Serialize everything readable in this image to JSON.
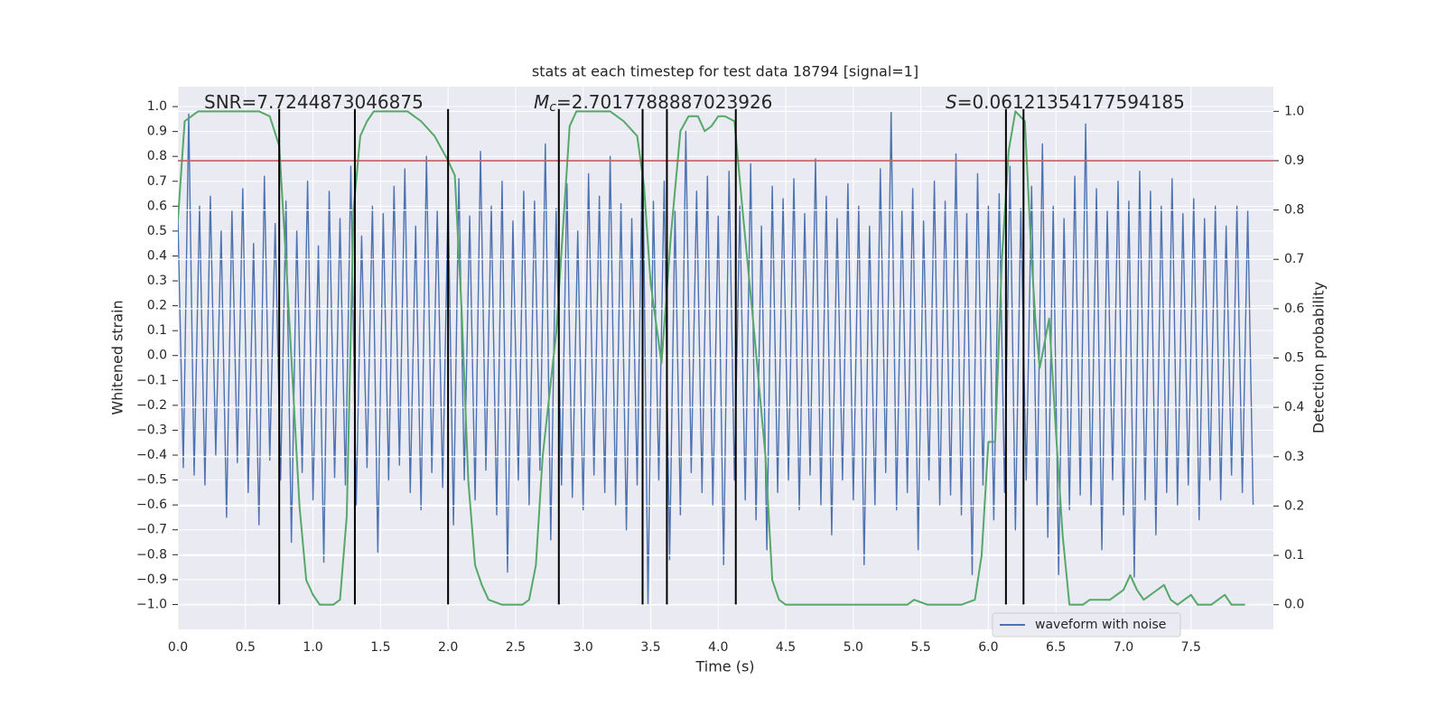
{
  "chart_data": {
    "type": "line",
    "title": "stats at each timestep for test data 18794 [signal=1]",
    "xlabel": "Time (s)",
    "ylabel": "Whitened strain",
    "y2label": "Detection probability",
    "xlim": [
      0,
      8.11
    ],
    "ylim": [
      -1.1,
      1.08
    ],
    "y2lim": [
      -0.05,
      1.05
    ],
    "xticks": [
      {
        "value": 0,
        "label": "0.0"
      },
      0.5,
      {
        "value": 1,
        "label": "1.0"
      },
      1.5,
      {
        "value": 2,
        "label": "2.0"
      },
      2.5,
      {
        "value": 3,
        "label": "3.0"
      },
      3.5,
      {
        "value": 4,
        "label": "4.0"
      },
      4.5,
      {
        "value": 5,
        "label": "5.0"
      },
      5.5,
      {
        "value": 6,
        "label": "6.0"
      },
      6.5,
      {
        "value": 7,
        "label": "7.0"
      },
      7.5
    ],
    "yticks": [
      {
        "value": 1,
        "label": "1.0"
      },
      0.9,
      0.8,
      0.7,
      0.6,
      0.5,
      0.4,
      0.3,
      0.2,
      0.1,
      {
        "value": 0,
        "label": "0.0"
      },
      {
        "value": -0.1,
        "label": "−0.1"
      },
      {
        "value": -0.2,
        "label": "−0.2"
      },
      {
        "value": -0.3,
        "label": "−0.3"
      },
      {
        "value": -0.4,
        "label": "−0.4"
      },
      {
        "value": -0.5,
        "label": "−0.5"
      },
      {
        "value": -0.6,
        "label": "−0.6"
      },
      {
        "value": -0.7,
        "label": "−0.7"
      },
      {
        "value": -0.8,
        "label": "−0.8"
      },
      {
        "value": -0.9,
        "label": "−0.9"
      },
      {
        "value": -1,
        "label": "−1.0"
      }
    ],
    "y2ticks": [
      {
        "value": 1,
        "label": "1.0"
      },
      0.9,
      0.8,
      0.7,
      0.6,
      0.5,
      0.4,
      0.3,
      0.2,
      0.1,
      {
        "value": 0,
        "label": "0.0"
      }
    ],
    "grid": true,
    "legend": "lower right",
    "annotations": [
      {
        "text": "SNR=7.7244873046875"
      },
      {
        "symbol": "M",
        "subscript": "c",
        "text": "=2.7017788887023926"
      },
      {
        "symbol": "S",
        "text": "=0.06121354177594185"
      }
    ],
    "series": [
      {
        "name": "waveform with noise",
        "color": "#4c72b0",
        "x": [
          0,
          0.04,
          0.08,
          0.12,
          0.16,
          0.2,
          0.24,
          0.28,
          0.32,
          0.36,
          0.4,
          0.44,
          0.48,
          0.52,
          0.56,
          0.6,
          0.64,
          0.68,
          0.72,
          0.76,
          0.8,
          0.84,
          0.88,
          0.92,
          0.96,
          1,
          1.04,
          1.08,
          1.12,
          1.16,
          1.2,
          1.24,
          1.28,
          1.32,
          1.36,
          1.4,
          1.44,
          1.48,
          1.52,
          1.56,
          1.6,
          1.64,
          1.68,
          1.72,
          1.76,
          1.8,
          1.84,
          1.88,
          1.92,
          1.96,
          2,
          2.04,
          2.08,
          2.12,
          2.16,
          2.2,
          2.24,
          2.28,
          2.32,
          2.36,
          2.4,
          2.44,
          2.48,
          2.52,
          2.56,
          2.6,
          2.64,
          2.68,
          2.72,
          2.76,
          2.8,
          2.84,
          2.88,
          2.92,
          2.96,
          3,
          3.04,
          3.08,
          3.12,
          3.16,
          3.2,
          3.24,
          3.28,
          3.32,
          3.36,
          3.4,
          3.44,
          3.48,
          3.52,
          3.56,
          3.6,
          3.64,
          3.68,
          3.72,
          3.76,
          3.8,
          3.84,
          3.88,
          3.92,
          3.96,
          4,
          4.04,
          4.08,
          4.12,
          4.16,
          4.2,
          4.24,
          4.28,
          4.32,
          4.36,
          4.4,
          4.44,
          4.48,
          4.52,
          4.56,
          4.6,
          4.64,
          4.68,
          4.72,
          4.76,
          4.8,
          4.84,
          4.88,
          4.92,
          4.96,
          5,
          5.04,
          5.08,
          5.12,
          5.16,
          5.2,
          5.24,
          5.28,
          5.32,
          5.36,
          5.4,
          5.44,
          5.48,
          5.52,
          5.56,
          5.6,
          5.64,
          5.68,
          5.72,
          5.76,
          5.8,
          5.84,
          5.88,
          5.92,
          5.96,
          6,
          6.04,
          6.08,
          6.12,
          6.16,
          6.2,
          6.24,
          6.28,
          6.32,
          6.36,
          6.4,
          6.44,
          6.48,
          6.52,
          6.56,
          6.6,
          6.64,
          6.68,
          6.72,
          6.76,
          6.8,
          6.84,
          6.88,
          6.92,
          6.96,
          7,
          7.04,
          7.08,
          7.12,
          7.16,
          7.2,
          7.24,
          7.28,
          7.32,
          7.36,
          7.4,
          7.44,
          7.48,
          7.52,
          7.56,
          7.6,
          7.64,
          7.68,
          7.72,
          7.76,
          7.8,
          7.84,
          7.88,
          7.92,
          7.96
        ],
        "values": [
          0.55,
          -0.45,
          0.97,
          -0.48,
          0.6,
          -0.52,
          0.64,
          -0.4,
          0.5,
          -0.65,
          0.58,
          -0.43,
          0.67,
          -0.55,
          0.45,
          -0.68,
          0.72,
          -0.42,
          0.53,
          -0.5,
          0.62,
          -0.75,
          0.5,
          -0.47,
          0.7,
          -0.58,
          0.44,
          -0.83,
          0.66,
          -0.49,
          0.55,
          -0.52,
          0.76,
          -0.6,
          0.48,
          -0.45,
          0.6,
          -0.79,
          0.57,
          -0.5,
          0.68,
          -0.44,
          0.75,
          -0.55,
          0.52,
          -0.62,
          0.8,
          -0.47,
          0.58,
          -0.53,
          0.63,
          -0.68,
          0.71,
          -0.5,
          0.56,
          -0.58,
          0.82,
          -0.46,
          0.6,
          -0.64,
          0.7,
          -0.87,
          0.54,
          -0.5,
          0.66,
          -0.6,
          0.62,
          -0.46,
          0.85,
          -0.74,
          0.59,
          -0.52,
          0.69,
          -0.57,
          0.5,
          -0.62,
          0.73,
          -0.48,
          0.64,
          -0.55,
          0.8,
          -0.6,
          0.61,
          -0.7,
          0.55,
          -0.52,
          0.88,
          -1.0,
          0.62,
          -0.5,
          0.7,
          -0.82,
          0.58,
          -0.64,
          0.9,
          -0.47,
          0.66,
          -0.55,
          0.72,
          -0.6,
          0.56,
          -0.84,
          0.74,
          -0.5,
          0.6,
          -0.58,
          0.77,
          -0.66,
          0.52,
          -0.78,
          0.68,
          -0.55,
          0.63,
          -0.5,
          0.71,
          -0.62,
          0.57,
          -0.48,
          0.79,
          -0.6,
          0.64,
          -0.72,
          0.55,
          -0.5,
          0.69,
          -0.58,
          0.6,
          -0.84,
          0.52,
          -0.6,
          0.75,
          -0.47,
          0.98,
          -0.62,
          0.58,
          -0.55,
          0.67,
          -0.78,
          0.54,
          -0.5,
          0.7,
          -0.6,
          0.62,
          -0.56,
          0.81,
          -0.64,
          0.57,
          -0.88,
          0.73,
          -0.52,
          0.6,
          -0.66,
          0.65,
          -0.55,
          0.76,
          -0.7,
          0.59,
          -0.5,
          0.68,
          -0.6,
          0.85,
          -0.73,
          0.6,
          -0.88,
          0.55,
          -0.62,
          0.72,
          -0.56,
          0.93,
          -0.6,
          0.67,
          -0.78,
          0.58,
          -0.5,
          0.7,
          -0.64,
          0.62,
          -0.89,
          0.74,
          -0.58,
          0.66,
          -0.72,
          0.6,
          -0.55,
          0.71,
          -0.6,
          0.57,
          -0.52,
          0.63,
          -0.66,
          0.55,
          -0.5,
          0.6,
          -0.58,
          0.52,
          -0.48,
          0.6,
          -0.55,
          0.58,
          -0.6
        ]
      },
      {
        "color": "#55a868",
        "axis": "y2",
        "x": [
          0,
          0.05,
          0.1,
          0.15,
          0.3,
          0.5,
          0.6,
          0.68,
          0.75,
          0.8,
          0.85,
          0.9,
          0.95,
          1.0,
          1.05,
          1.15,
          1.2,
          1.25,
          1.3,
          1.35,
          1.4,
          1.45,
          1.7,
          1.8,
          1.9,
          2.0,
          2.05,
          2.1,
          2.15,
          2.2,
          2.25,
          2.3,
          2.4,
          2.55,
          2.6,
          2.65,
          2.7,
          2.8,
          2.9,
          2.95,
          3.2,
          3.3,
          3.4,
          3.45,
          3.5,
          3.55,
          3.58,
          3.65,
          3.72,
          3.78,
          3.85,
          3.9,
          3.95,
          4.0,
          4.05,
          4.12,
          4.18,
          4.25,
          4.35,
          4.4,
          4.45,
          4.5,
          5.0,
          5.4,
          5.45,
          5.55,
          5.7,
          5.8,
          5.9,
          5.95,
          6.0,
          6.05,
          6.1,
          6.15,
          6.2,
          6.27,
          6.32,
          6.35,
          6.38,
          6.45,
          6.5,
          6.55,
          6.6,
          6.7,
          6.75,
          6.8,
          6.9,
          7.0,
          7.05,
          7.1,
          7.15,
          7.2,
          7.3,
          7.35,
          7.4,
          7.45,
          7.5,
          7.55,
          7.65,
          7.7,
          7.75,
          7.8,
          7.9
        ],
        "values": [
          0.78,
          0.98,
          0.99,
          1.0,
          1.0,
          1.0,
          1.0,
          0.99,
          0.93,
          0.7,
          0.45,
          0.2,
          0.05,
          0.02,
          0.0,
          0.0,
          0.01,
          0.18,
          0.8,
          0.95,
          0.98,
          1.0,
          1.0,
          0.98,
          0.95,
          0.9,
          0.87,
          0.6,
          0.25,
          0.08,
          0.04,
          0.01,
          0.0,
          0.0,
          0.01,
          0.08,
          0.3,
          0.55,
          0.97,
          1.0,
          1.0,
          0.98,
          0.95,
          0.85,
          0.65,
          0.55,
          0.49,
          0.75,
          0.96,
          0.99,
          0.99,
          0.96,
          0.97,
          0.99,
          0.99,
          0.98,
          0.8,
          0.6,
          0.3,
          0.05,
          0.01,
          0.0,
          0.0,
          0.0,
          0.01,
          0.0,
          0.0,
          0.0,
          0.01,
          0.1,
          0.33,
          0.33,
          0.7,
          0.92,
          1.0,
          0.98,
          0.7,
          0.57,
          0.48,
          0.58,
          0.35,
          0.14,
          0.0,
          0.0,
          0.01,
          0.01,
          0.01,
          0.03,
          0.06,
          0.03,
          0.01,
          0.02,
          0.04,
          0.01,
          0.0,
          0.01,
          0.02,
          0.0,
          0.0,
          0.01,
          0.02,
          0.0,
          0.0
        ]
      }
    ],
    "hlines": [
      {
        "value": 0.9,
        "axis": "y2",
        "color": "#c44e52"
      }
    ],
    "vlines": {
      "color": "#000000",
      "ymin": -1.0,
      "ymax": 0.99,
      "x": [
        0.75,
        1.31,
        2.0,
        2.82,
        3.44,
        3.62,
        4.13,
        6.13,
        6.26
      ]
    }
  }
}
